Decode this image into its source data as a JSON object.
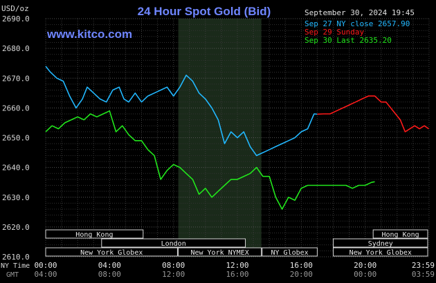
{
  "header": {
    "unit": "USD/oz",
    "title": "24 Hour Spot Gold (Bid)",
    "source": "www.kitco.com",
    "timestamp": "September 30, 2024 19:45"
  },
  "legend": [
    {
      "label": "Sep 27 NY close 2657.90",
      "color": "#22b8ff"
    },
    {
      "label": "Sep 29 Sunday",
      "color": "#ff1a1a"
    },
    {
      "label": "Sep 30 Last 2635.20",
      "color": "#22e81c"
    }
  ],
  "sessions": [
    {
      "label": "Hong Kong",
      "row": 1,
      "start": 0,
      "end": 6.1
    },
    {
      "label": "London",
      "row": 2,
      "start": 3.5,
      "end": 12.5
    },
    {
      "label": "New York Globex",
      "row": 3,
      "start": 0,
      "end": 8.25
    },
    {
      "label": "New York NYMEX",
      "row": 3,
      "start": 8.3,
      "end": 13.5
    },
    {
      "label": "NY Globex",
      "row": 3,
      "start": 13.55,
      "end": 17.0
    },
    {
      "label": "Hong Kong",
      "row": 1,
      "start": 20.5,
      "end": 24
    },
    {
      "label": "Sydney",
      "row": 2,
      "start": 18.0,
      "end": 24
    },
    {
      "label": "New York Globex",
      "row": 3,
      "start": 18.0,
      "end": 24
    }
  ],
  "row_labels": {
    "ny": "NY Time",
    "gmt": "GMT"
  },
  "chart_data": {
    "type": "line",
    "title": "24 Hour Spot Gold (Bid)",
    "ylabel": "USD/oz",
    "ylim": [
      2610.0,
      2690.0
    ],
    "yticks": [
      "2610.0",
      "2620.0",
      "2630.0",
      "2640.0",
      "2650.0",
      "2660.0",
      "2670.0",
      "2680.0",
      "2690.0"
    ],
    "xlim": [
      0,
      24
    ],
    "x_ny_ticks": [
      "00:00",
      "04:00",
      "08:00",
      "12:00",
      "16:00",
      "20:00",
      "23:59"
    ],
    "x_gmt_ticks": [
      "04:00",
      "08:00",
      "12:00",
      "16:00",
      "20:00",
      "00:00",
      "03:59"
    ],
    "x_tick_hours": [
      0,
      4,
      8,
      12,
      16,
      20,
      23.98
    ],
    "shaded_region": [
      8.3,
      13.5
    ],
    "grid": true,
    "series": [
      {
        "name": "Sep 27 NY close 2657.90",
        "color": "#22b8ff",
        "x": [
          0,
          0.3,
          0.7,
          1.1,
          1.5,
          1.9,
          2.3,
          2.6,
          3.0,
          3.4,
          3.8,
          4.2,
          4.6,
          4.9,
          5.2,
          5.6,
          6.0,
          6.4,
          6.8,
          7.2,
          7.6,
          8.0,
          8.4,
          8.8,
          9.2,
          9.6,
          10.0,
          10.4,
          10.8,
          11.2,
          11.6,
          12.0,
          12.4,
          12.8,
          13.2,
          13.6,
          14.0,
          14.4,
          14.8,
          15.2,
          15.6,
          16.0,
          16.4,
          16.8,
          17.0
        ],
        "y": [
          2674,
          2672,
          2670,
          2669,
          2664,
          2660,
          2663,
          2667,
          2665,
          2663,
          2662,
          2666,
          2667,
          2663,
          2662,
          2665,
          2662,
          2664,
          2665,
          2666,
          2667,
          2664,
          2667,
          2671,
          2669,
          2665,
          2663,
          2660,
          2656,
          2648,
          2652,
          2650,
          2652,
          2647,
          2644,
          2645,
          2646,
          2647,
          2648,
          2649,
          2650,
          2652,
          2653,
          2658,
          2657.9
        ]
      },
      {
        "name": "Sep 29 Sunday",
        "color": "#ff1a1a",
        "x": [
          17.0,
          17.4,
          17.8,
          18.2,
          18.6,
          19.0,
          19.4,
          19.8,
          20.2,
          20.6,
          21.0,
          21.3,
          21.6,
          21.9,
          22.2,
          22.5,
          22.8,
          23.1,
          23.4,
          23.7,
          23.98
        ],
        "y": [
          2657.9,
          2658,
          2658,
          2659,
          2660,
          2661,
          2662,
          2663,
          2664,
          2664,
          2662,
          2662,
          2660,
          2658,
          2656,
          2652,
          2653,
          2654,
          2653,
          2654,
          2653
        ]
      },
      {
        "name": "Sep 30 Last 2635.20",
        "color": "#22e81c",
        "x": [
          0,
          0.4,
          0.8,
          1.2,
          1.6,
          2.0,
          2.4,
          2.8,
          3.2,
          3.6,
          4.0,
          4.4,
          4.8,
          5.2,
          5.6,
          6.0,
          6.4,
          6.8,
          7.2,
          7.6,
          8.0,
          8.4,
          8.8,
          9.2,
          9.6,
          10.0,
          10.4,
          10.8,
          11.2,
          11.6,
          12.0,
          12.4,
          12.8,
          13.2,
          13.6,
          14.0,
          14.4,
          14.8,
          15.2,
          15.6,
          16.0,
          16.4,
          16.8,
          17.2,
          17.6,
          18.0,
          18.4,
          18.8,
          19.2,
          19.6,
          20.0,
          20.4,
          20.6
        ],
        "y": [
          2652,
          2654,
          2653,
          2655,
          2656,
          2657,
          2656,
          2658,
          2657,
          2658,
          2659,
          2652,
          2654,
          2651,
          2649,
          2649,
          2646,
          2644,
          2636,
          2639,
          2641,
          2640,
          2638,
          2636,
          2631,
          2633,
          2630,
          2632,
          2634,
          2636,
          2636,
          2637,
          2638,
          2640,
          2637,
          2637,
          2630,
          2626,
          2630,
          2629,
          2633,
          2634,
          2634,
          2634,
          2634,
          2634,
          2634,
          2634,
          2633,
          2634,
          2634,
          2635,
          2635.2
        ]
      }
    ]
  }
}
